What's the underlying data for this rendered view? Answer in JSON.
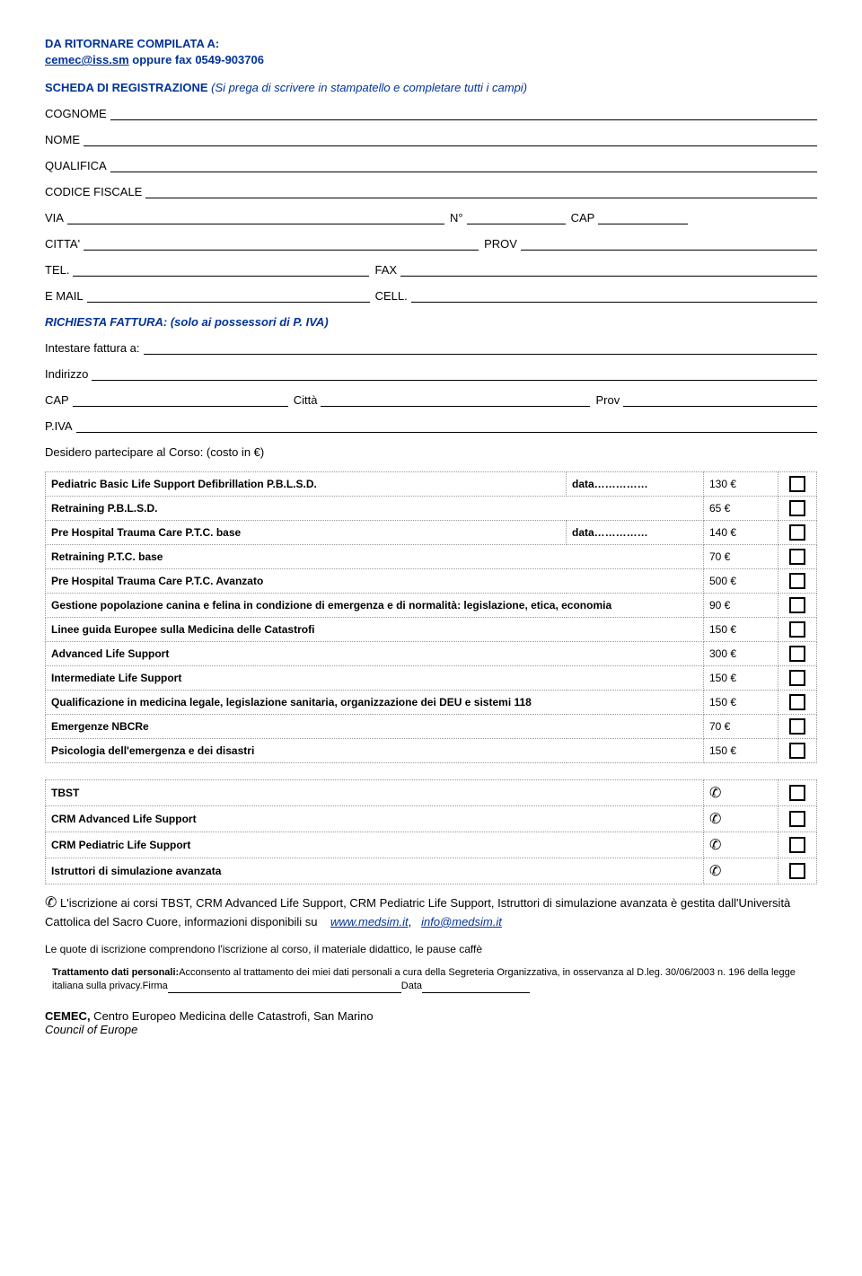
{
  "header": {
    "return_to": "DA RITORNARE COMPILATA A:",
    "email": "cemec@iss.sm",
    "fax_suffix": " oppure fax 0549-903706",
    "scheda_title": "SCHEDA DI REGISTRAZIONE",
    "scheda_note": "(Si prega di scrivere in stampatello e completare tutti i campi)"
  },
  "fields": {
    "cognome": "COGNOME",
    "nome": "NOME",
    "qualifica": "QUALIFICA",
    "codice_fiscale": "CODICE FISCALE",
    "via": "VIA",
    "n": "N°",
    "cap": "CAP",
    "citta": "CITTA'",
    "prov": "PROV",
    "tel": "TEL.",
    "fax": "FAX",
    "email": "E MAIL",
    "cell": "CELL.",
    "richiesta": "RICHIESTA FATTURA: (solo ai possessori di P. IVA)",
    "intestare": "Intestare fattura a:",
    "indirizzo": "Indirizzo",
    "cap2": "CAP",
    "citta2": "Città",
    "prov2": "Prov",
    "piva": "P.IVA",
    "desidero": "Desidero partecipare al Corso: (costo in €)"
  },
  "courses": [
    {
      "desc": "Pediatric Basic Life Support Defibrillation  P.B.L.S.D.",
      "data": "data……………",
      "price": "130 €"
    },
    {
      "desc": "Retraining  P.B.L.S.D.",
      "data": "",
      "price": "65 €"
    },
    {
      "desc": "Pre Hospital Trauma Care P.T.C. base",
      "data": "data……………",
      "price": "140 €"
    },
    {
      "desc": "Retraining P.T.C. base",
      "data": "",
      "price": "70 €"
    },
    {
      "desc": "Pre Hospital Trauma Care P.T.C. Avanzato",
      "data": "",
      "price": "500 €"
    },
    {
      "desc": "Gestione popolazione canina e felina in condizione di emergenza e di normalità: legislazione, etica, economia",
      "data": "",
      "price": "90 €"
    },
    {
      "desc": "Linee guida Europee sulla Medicina delle Catastrofi",
      "data": "",
      "price": "150 €"
    },
    {
      "desc": "Advanced Life Support",
      "data": "",
      "price": "300 €"
    },
    {
      "desc": "Intermediate Life Support",
      "data": "",
      "price": "150 €"
    },
    {
      "desc": "Qualificazione in medicina legale, legislazione sanitaria, organizzazione dei DEU e sistemi 118",
      "data": "",
      "price": "150 €"
    },
    {
      "desc": "Emergenze NBCRe",
      "data": "",
      "price": "70 €"
    },
    {
      "desc": "Psicologia dell'emergenza e dei disastri",
      "data": "",
      "price": "150 €"
    }
  ],
  "sim_courses": [
    {
      "desc": "TBST"
    },
    {
      "desc": "CRM Advanced Life Support"
    },
    {
      "desc": "CRM Pediatric Life Support"
    },
    {
      "desc": "Istruttori di simulazione avanzata"
    }
  ],
  "notes": {
    "iscrizione": "L'iscrizione ai corsi TBST, CRM Advanced Life Support, CRM Pediatric Life Support, Istruttori di simulazione avanzata è gestita dall'Università Cattolica del Sacro Cuore, informazioni disponibili su ",
    "link1": "www.medsim.it",
    "sep": ", ",
    "link2": "info@medsim.it",
    "quote": "Le quote di iscrizione comprendono l'iscrizione al corso, il materiale didattico, le pause caffè",
    "trattamento_bold": "Trattamento dati personali:",
    "trattamento_text": "Acconsento al trattamento dei miei dati personali a cura della Segreteria Organizzativa, in osservanza al D.leg. 30/06/2003 n. 196 della legge italiana sulla privacy.Firma",
    "trattamento_data": "Data"
  },
  "footer": {
    "cemec": "CEMEC,",
    "cemec_rest": " Centro Europeo Medicina delle Catastrofi, San Marino",
    "council": "Council of Europe"
  },
  "icons": {
    "phone": "✆"
  },
  "colors": {
    "primary": "#003399",
    "text": "#000000",
    "border_dotted": "#999999",
    "background": "#ffffff"
  },
  "typography": {
    "body_fontsize": 13,
    "table_fontsize": 12,
    "small_fontsize": 11
  }
}
